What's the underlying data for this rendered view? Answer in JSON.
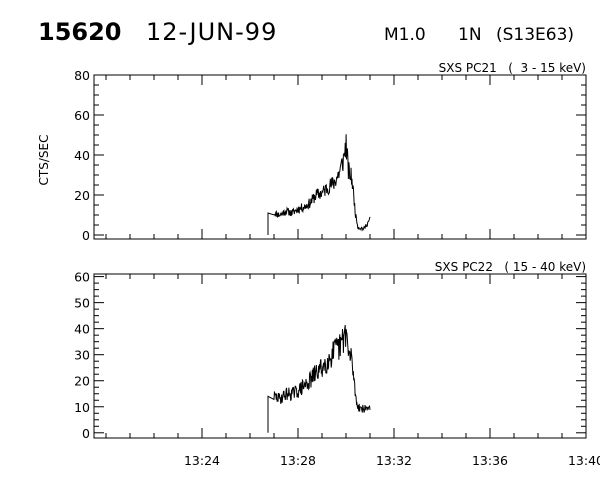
{
  "header": {
    "event_number": "15620",
    "date": "12-JUN-99",
    "goes_class": "M1.0",
    "optical_class": "1N",
    "location": "(S13E63)"
  },
  "chart_data": [
    {
      "type": "line",
      "title": "SXS PC21   (  3 - 15 keV)",
      "xlabel": "",
      "ylabel": "CTS/SEC",
      "x_unit": "minutes after 13:00 UT",
      "xlim": [
        "13:19:30",
        "13:40:00"
      ],
      "x_tick_labels": [
        "13:24",
        "13:28",
        "13:32",
        "13:36",
        "13:40"
      ],
      "ylim": [
        -2,
        80
      ],
      "y_tick_labels": [
        "0",
        "20",
        "40",
        "60",
        "80"
      ],
      "grid": false,
      "series": [
        {
          "x": [
            26.75,
            27.0,
            27.25,
            27.5,
            27.75,
            28.0,
            28.25,
            28.5,
            28.75,
            29.0,
            29.25,
            29.5,
            29.75,
            29.9,
            30.0,
            30.1,
            30.25,
            30.4,
            30.5,
            30.75,
            31.0
          ],
          "values": [
            0,
            11,
            10,
            12,
            11,
            13,
            14,
            16,
            20,
            21,
            24,
            26,
            32,
            38,
            46,
            32,
            28,
            10,
            4,
            3,
            8
          ]
        }
      ]
    },
    {
      "type": "line",
      "title": "SXS PC22   ( 15 - 40 keV)",
      "xlabel": "",
      "ylabel": "",
      "x_unit": "minutes after 13:00 UT",
      "xlim": [
        "13:19:30",
        "13:40:00"
      ],
      "x_tick_labels": [
        "13:24",
        "13:28",
        "13:32",
        "13:36",
        "13:40"
      ],
      "ylim": [
        -2,
        61
      ],
      "y_tick_labels": [
        "0",
        "10",
        "20",
        "30",
        "40",
        "50",
        "60"
      ],
      "grid": false,
      "series": [
        {
          "x": [
            26.75,
            27.0,
            27.25,
            27.5,
            27.75,
            28.0,
            28.25,
            28.5,
            28.75,
            29.0,
            29.25,
            29.5,
            29.75,
            29.9,
            30.0,
            30.1,
            30.25,
            30.4,
            30.5,
            30.75,
            31.0
          ],
          "values": [
            0,
            14,
            13,
            15,
            15,
            16,
            18,
            20,
            23,
            25,
            28,
            31,
            33,
            36,
            40,
            30,
            28,
            14,
            10,
            9,
            10
          ]
        }
      ]
    }
  ]
}
